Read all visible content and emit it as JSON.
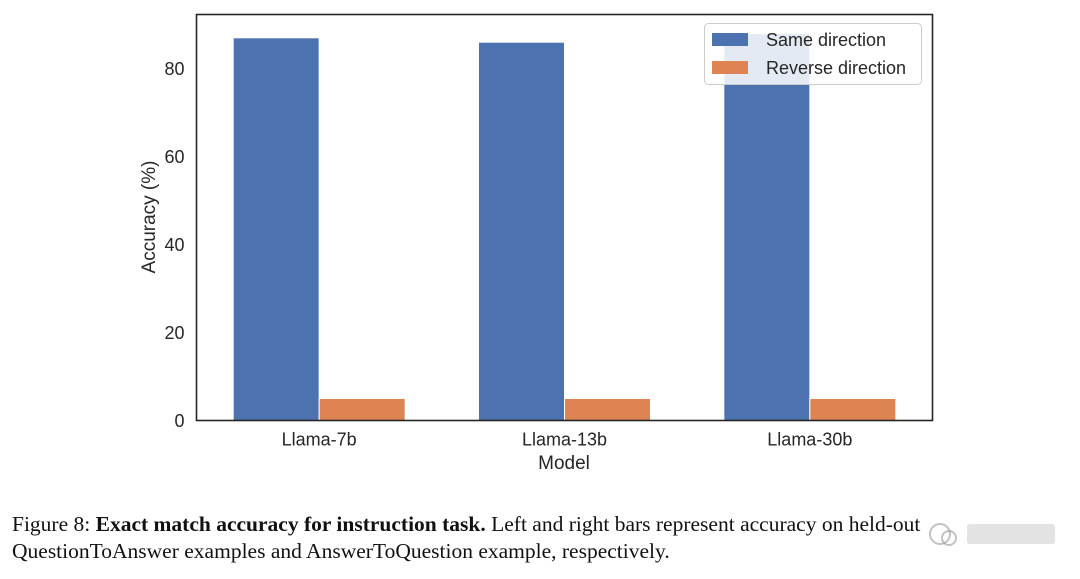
{
  "chart_data": {
    "type": "bar",
    "categories": [
      "Llama-7b",
      "Llama-13b",
      "Llama-30b"
    ],
    "series": [
      {
        "name": "Same direction",
        "values": [
          87,
          86,
          88
        ],
        "color": "#4c72b0"
      },
      {
        "name": "Reverse direction",
        "values": [
          5,
          5,
          5
        ],
        "color": "#dd8452"
      }
    ],
    "title": "",
    "xlabel": "Model",
    "ylabel": "Accuracy (%)",
    "ylim": [
      0,
      92.3
    ],
    "yticks": [
      0,
      20,
      40,
      60,
      80
    ],
    "grid": false,
    "legend_position": "top-right"
  },
  "caption": {
    "figure_label": "Figure 8:",
    "bold_title": "Exact match accuracy for instruction task.",
    "text": "Left and right bars represent accuracy on held-out QuestionToAnswer examples and AnswerToQuestion example, respectively."
  }
}
